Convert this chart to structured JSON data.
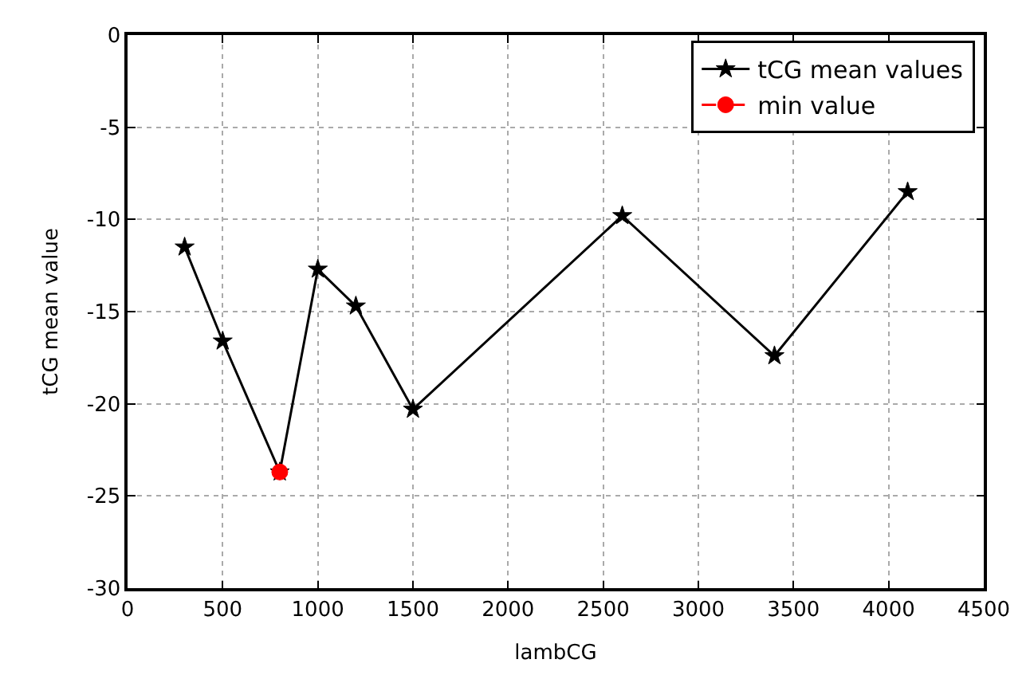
{
  "chart_data": {
    "type": "line",
    "xlabel": "lambCG",
    "ylabel": "tCG mean value",
    "xlim": [
      0,
      4500
    ],
    "xticks": [
      0,
      500,
      1000,
      1500,
      2000,
      2500,
      3000,
      3500,
      4000,
      4500
    ],
    "ylim": [
      -30,
      0
    ],
    "yticks": [
      -30,
      -25,
      -20,
      -15,
      -10,
      -5,
      0
    ],
    "grid": true,
    "legend": "top right",
    "series": [
      {
        "name": "tCG mean values",
        "color": "#000000",
        "marker": "star",
        "line_style": "solid",
        "x": [
          300,
          500,
          800,
          1000,
          1200,
          1500,
          2600,
          3400,
          4100
        ],
        "values": [
          -11.5,
          -16.6,
          -23.7,
          -12.7,
          -14.7,
          -20.3,
          -9.8,
          -17.4,
          -8.5
        ]
      },
      {
        "name": "min value",
        "color": "#ff0000",
        "marker": "circle",
        "line_style": "dashed",
        "x": [
          800
        ],
        "values": [
          -23.7
        ]
      }
    ]
  }
}
